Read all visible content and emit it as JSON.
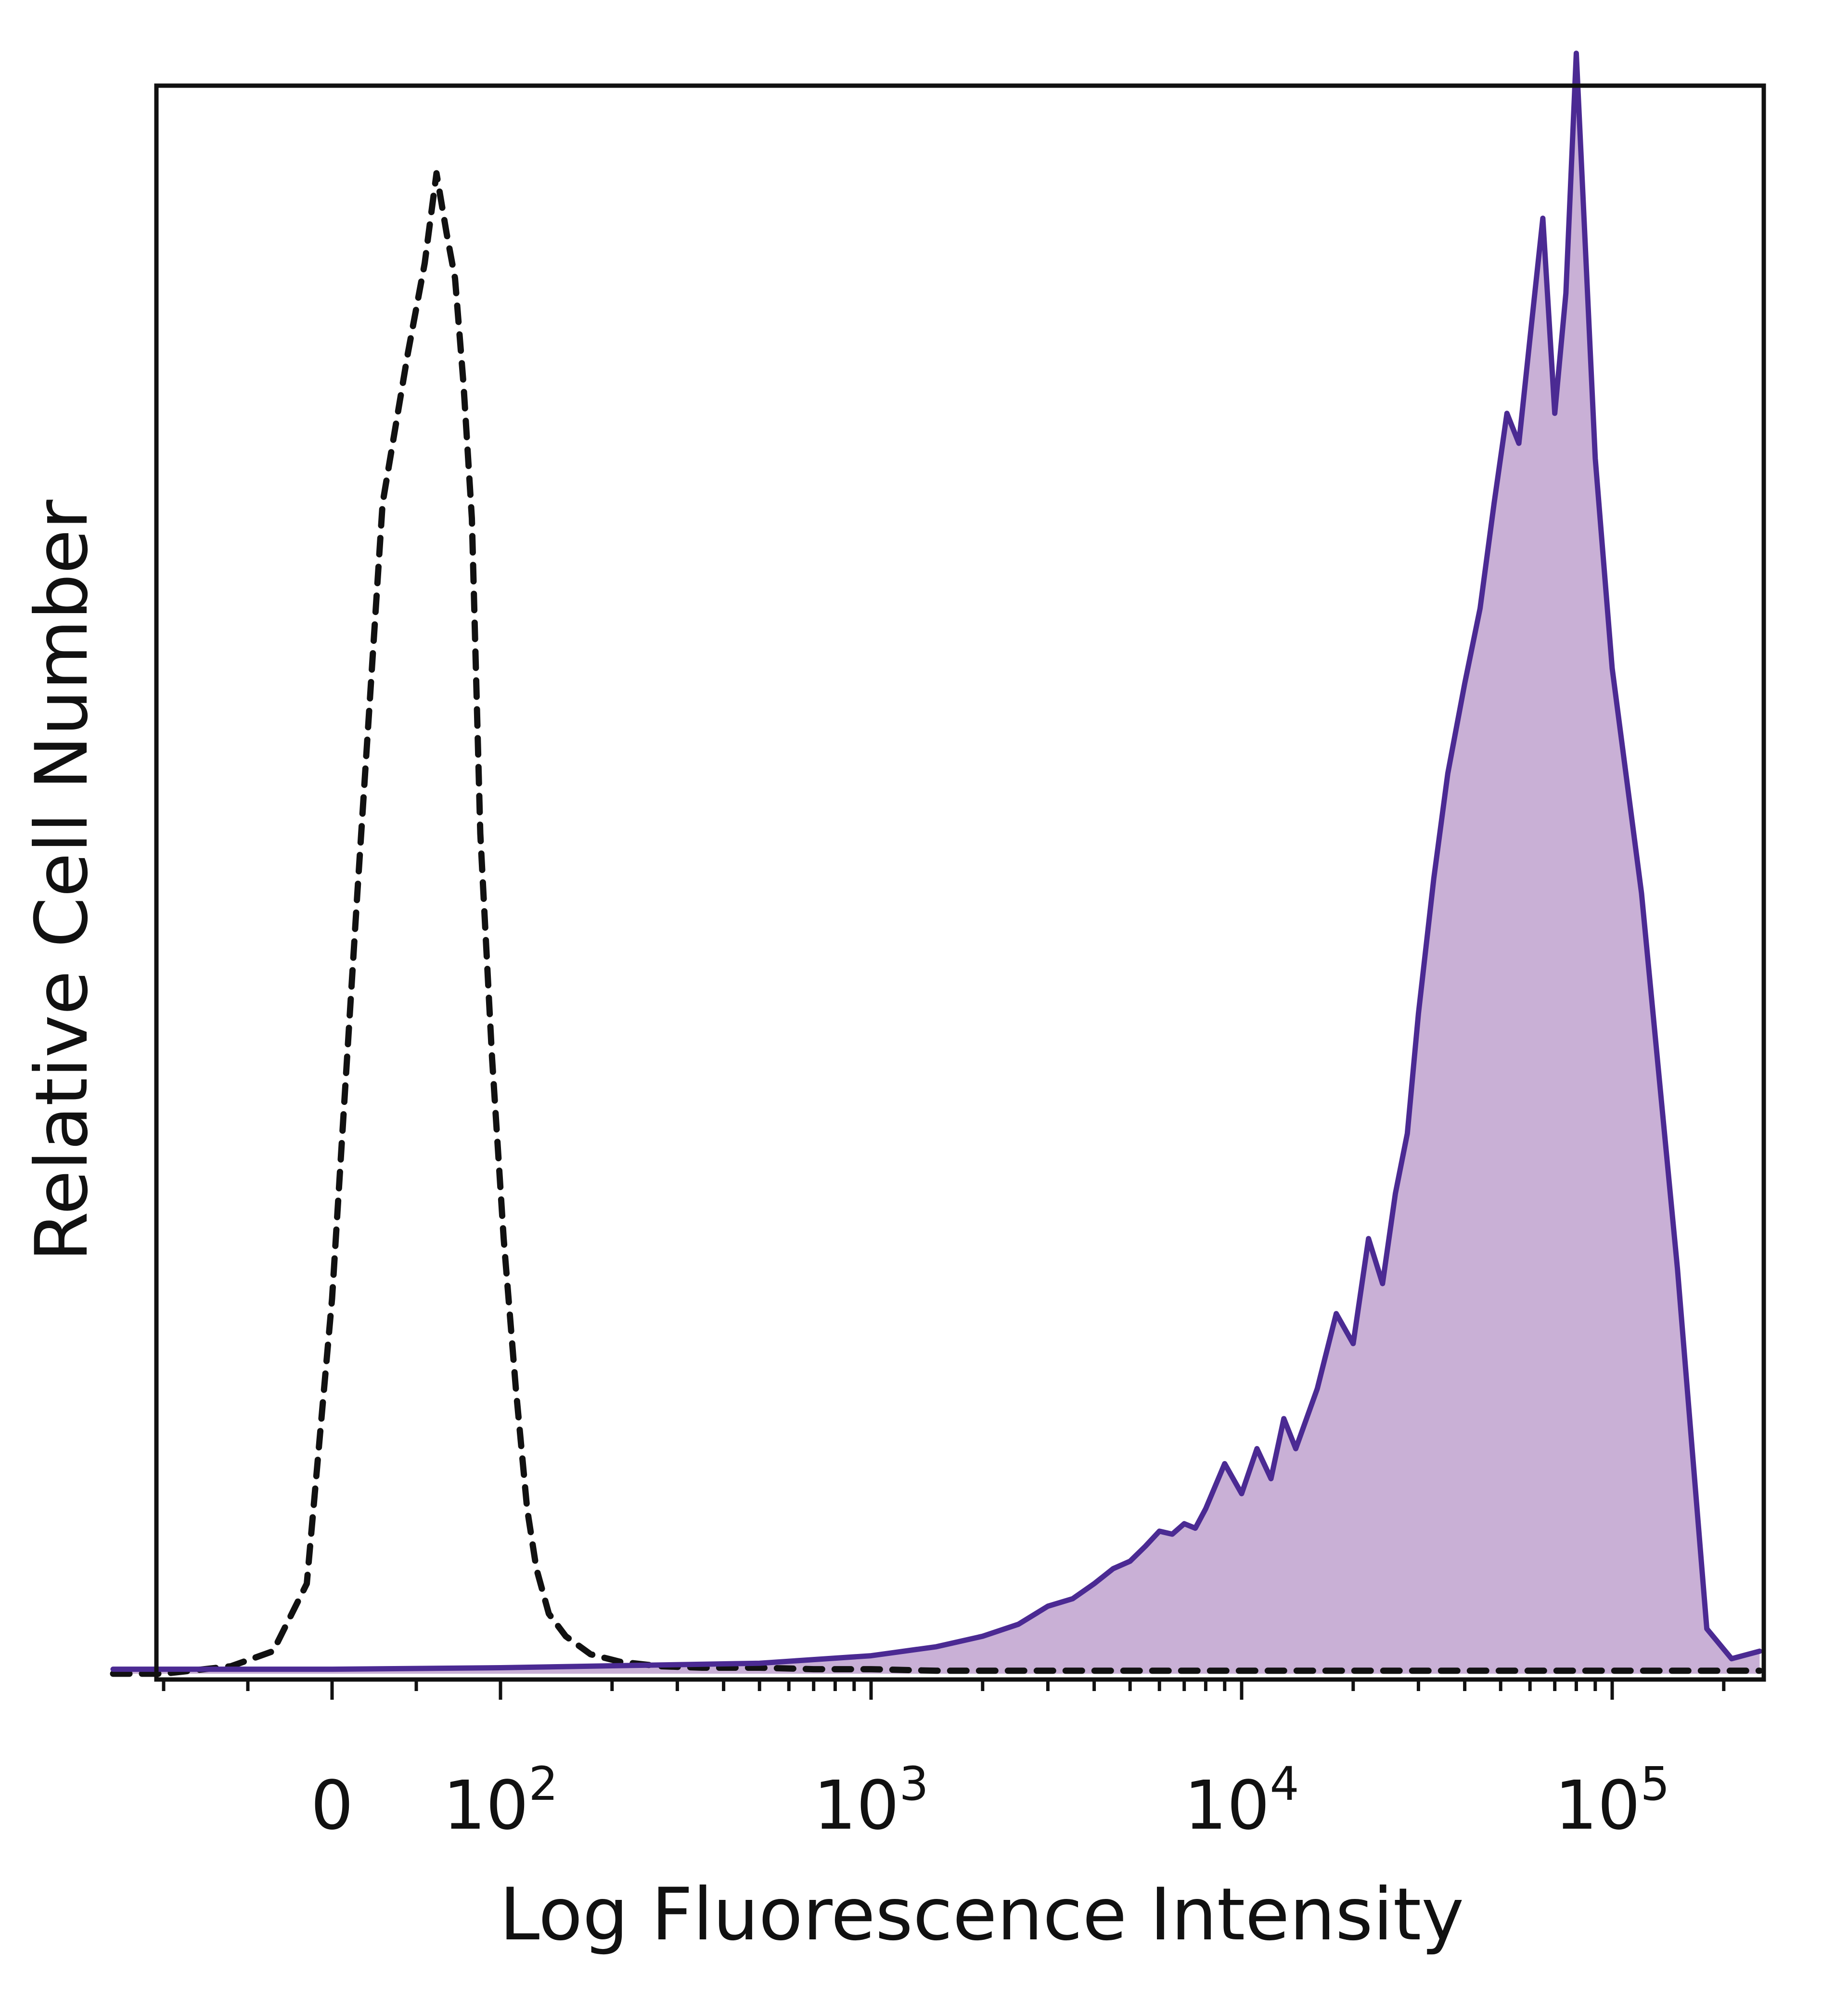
{
  "chart_data": {
    "type": "area",
    "title": "",
    "xlabel": "Log Fluorescence Intensity",
    "ylabel": "Relative Cell Number",
    "x_scale": "biexponential (log above 10^2)",
    "xlim": [
      -130,
      250000
    ],
    "ylim": [
      0,
      1.1
    ],
    "grid": false,
    "legend": "none",
    "x_ticks": [
      {
        "label": "0",
        "value": 0
      },
      {
        "label": "10",
        "exp": "2",
        "value": 100
      },
      {
        "label": "10",
        "exp": "3",
        "value": 1000
      },
      {
        "label": "10",
        "exp": "4",
        "value": 10000
      },
      {
        "label": "10",
        "exp": "5",
        "value": 100000
      }
    ],
    "series": [
      {
        "style": "dashed",
        "color": "#111111",
        "fill": "none",
        "x": [
          -130,
          -100,
          -60,
          -35,
          -15,
          0,
          15,
          30,
          45,
          55,
          62,
          68,
          73,
          78,
          83,
          88,
          95,
          102,
          110,
          118,
          125,
          135,
          150,
          175,
          210,
          270,
          350,
          500,
          700,
          1000,
          1500,
          2500,
          5000,
          10000,
          20000,
          50000,
          100000,
          250000
        ],
        "y": [
          0,
          0,
          0.005,
          0.015,
          0.06,
          0.25,
          0.52,
          0.78,
          0.88,
          0.94,
          1.0,
          0.96,
          0.93,
          0.86,
          0.77,
          0.56,
          0.41,
          0.29,
          0.19,
          0.11,
          0.07,
          0.04,
          0.025,
          0.013,
          0.008,
          0.005,
          0.004,
          0.004,
          0.003,
          0.003,
          0.002,
          0.002,
          0.002,
          0.002,
          0.002,
          0.002,
          0.002,
          0.002
        ]
      },
      {
        "style": "solid",
        "color": "#4b2a93",
        "fill": "#c9b0d6",
        "x": [
          -130,
          0,
          100,
          500,
          1000,
          1500,
          2000,
          2500,
          3000,
          3500,
          4000,
          4500,
          5000,
          5500,
          6000,
          6500,
          7000,
          7500,
          8000,
          9000,
          10000,
          11000,
          12000,
          13000,
          14000,
          16000,
          18000,
          20000,
          22000,
          24000,
          26000,
          28000,
          30000,
          33000,
          36000,
          40000,
          44000,
          48000,
          52000,
          56000,
          60000,
          65000,
          70000,
          75000,
          80000,
          90000,
          100000,
          120000,
          150000,
          180000,
          210000,
          250000
        ],
        "y": [
          0.003,
          0.003,
          0.004,
          0.007,
          0.012,
          0.018,
          0.025,
          0.033,
          0.045,
          0.05,
          0.06,
          0.07,
          0.075,
          0.085,
          0.095,
          0.093,
          0.1,
          0.097,
          0.11,
          0.14,
          0.12,
          0.15,
          0.13,
          0.17,
          0.15,
          0.19,
          0.24,
          0.22,
          0.29,
          0.26,
          0.32,
          0.36,
          0.44,
          0.53,
          0.6,
          0.66,
          0.71,
          0.78,
          0.84,
          0.82,
          0.89,
          0.97,
          0.84,
          0.92,
          1.08,
          0.81,
          0.67,
          0.52,
          0.27,
          0.03,
          0.01,
          0.015
        ]
      }
    ]
  }
}
